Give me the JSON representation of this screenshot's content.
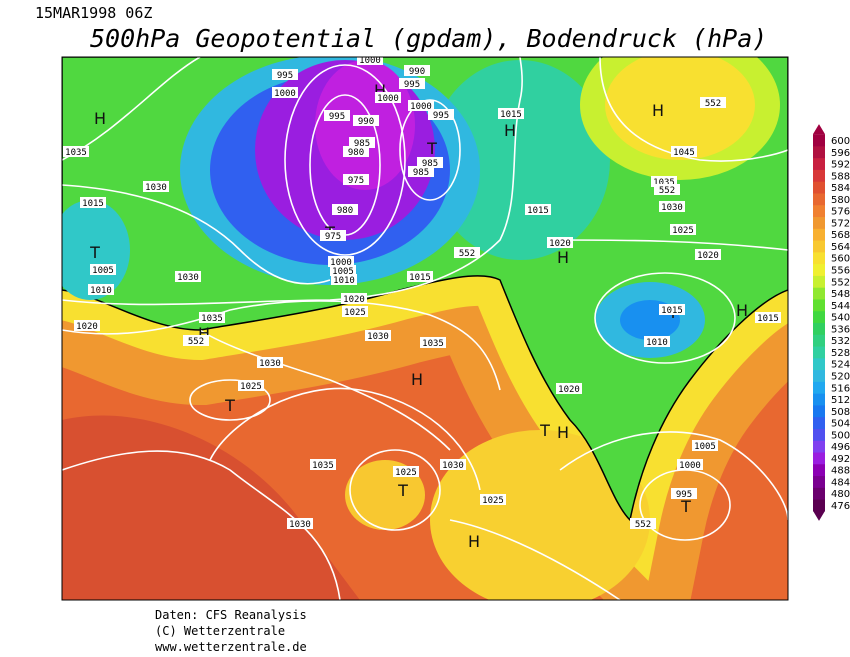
{
  "header": {
    "date": "15MAR1998 06Z",
    "title": "500hPa Geopotential (gpdam), Bodendruck (hPa)"
  },
  "map": {
    "labels": [
      "H",
      "H",
      "H",
      "H",
      "T",
      "T",
      "T",
      "H",
      "T",
      "H",
      "H",
      "T",
      "H",
      "T",
      "H",
      "T",
      "H",
      "T",
      "995",
      "1000",
      "1000",
      "990",
      "995",
      "1000",
      "1000",
      "995",
      "995",
      "990",
      "985",
      "980",
      "975",
      "985",
      "985",
      "980",
      "975",
      "1000",
      "1005",
      "1010",
      "1015",
      "1035",
      "1030",
      "1015",
      "1005",
      "1010",
      "1030",
      "1015",
      "552",
      "1015",
      "1020",
      "1020",
      "1025",
      "1030",
      "1035",
      "552",
      "1020",
      "1015",
      "1010",
      "1015",
      "1020",
      "1025",
      "1030",
      "1035",
      "552",
      "1045",
      "552",
      "1030",
      "1025",
      "1035",
      "1020",
      "1005",
      "1000",
      "995",
      "1035",
      "1025",
      "1030",
      "1025",
      "1030",
      "552"
    ]
  },
  "colorbar": {
    "ticks": [
      476,
      480,
      484,
      488,
      492,
      496,
      500,
      504,
      508,
      512,
      516,
      520,
      524,
      528,
      532,
      536,
      540,
      544,
      548,
      552,
      556,
      560,
      564,
      568,
      572,
      576,
      580,
      584,
      588,
      592,
      596,
      600
    ],
    "colors": [
      "#5a0050",
      "#6a006e",
      "#7a0090",
      "#8c00b4",
      "#9a1ee0",
      "#8040f0",
      "#5050f0",
      "#3060f0",
      "#1878f0",
      "#1890f0",
      "#20a8f0",
      "#30b8e0",
      "#30c8c8",
      "#30d0a0",
      "#30d080",
      "#30d060",
      "#40d840",
      "#60e030",
      "#90e830",
      "#c8f030",
      "#f0f030",
      "#f8e030",
      "#f8c830",
      "#f8b030",
      "#f09830",
      "#f08030",
      "#e86830",
      "#e05030",
      "#d83838",
      "#c82040",
      "#b01040",
      "#a00040"
    ]
  },
  "footer": {
    "lines": [
      "Daten: CFS Reanalysis",
      "(C) Wetterzentrale",
      "www.wetterzentrale.de"
    ]
  }
}
